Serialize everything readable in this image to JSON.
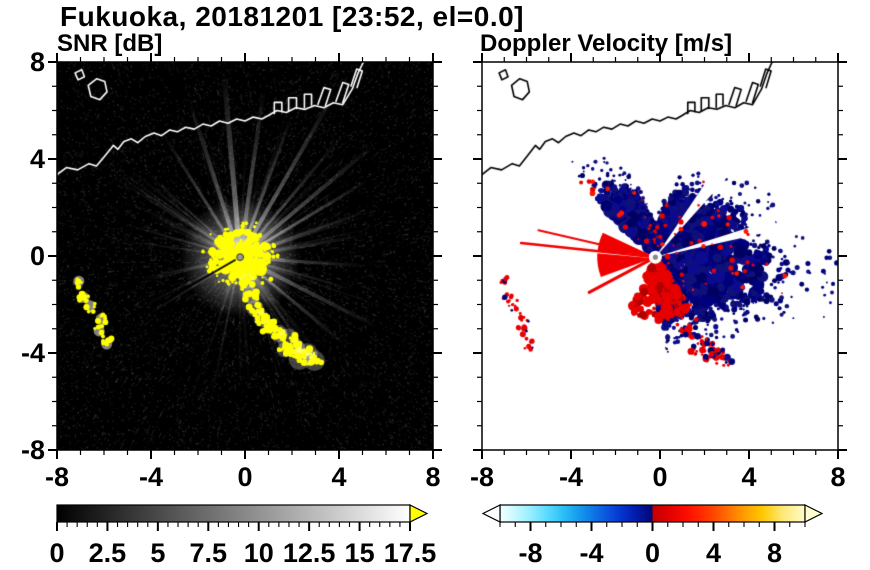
{
  "title": "Fukuoka, 20181201 [23:52, el=0.0]",
  "panels": {
    "snr": {
      "title": "SNR [dB]"
    },
    "doppler": {
      "title": "Doppler Velocity [m/s]"
    }
  },
  "chart_data": [
    {
      "type": "heatmap",
      "id": "snr",
      "title": "SNR [dB]",
      "xlim": [
        -8,
        8
      ],
      "ylim": [
        -8,
        8
      ],
      "x_major_ticks": [
        -8,
        -4,
        0,
        4,
        8
      ],
      "y_major_ticks": [
        -8,
        -4,
        0,
        4,
        8
      ],
      "minor_tick_step": 1,
      "grid": false,
      "colorbar": {
        "min": 0,
        "max": 17.5,
        "major_ticks": [
          0,
          2.5,
          5,
          7.5,
          10,
          12.5,
          15,
          17.5
        ],
        "minor_step": 0.5,
        "colormap_stops": [
          [
            0,
            "#000000"
          ],
          [
            0.5,
            "#808080"
          ],
          [
            1,
            "#ffffff"
          ]
        ],
        "over_arrow_color": "#ffff00"
      },
      "features": [
        "radar site at origin with saturated yellow SNR core",
        "bright white beams radiating from origin in many azimuths, densest toward north and northeast",
        "yellow clutter band trailing southeast from origin to about (3.5, -4.5)",
        "isolated yellow clutter patches near (-7, -1), (-6.7, -2.1), (-6.2, -3.1), (-5.9, -3.7)",
        "dark blocked ray toward the southwest",
        "white coastline across the north with harbor piers near (1.5, 5.5) to (4, 7.5)",
        "small island outline near (-6.5, 6.8)",
        "dim speckle noise over the whole black background"
      ]
    },
    {
      "type": "heatmap",
      "id": "doppler",
      "title": "Doppler Velocity [m/s]",
      "xlim": [
        -8,
        8
      ],
      "ylim": [
        -8,
        8
      ],
      "x_major_ticks": [
        -8,
        -4,
        0,
        4,
        8
      ],
      "y_major_ticks": [
        -8,
        -4,
        0,
        4,
        8
      ],
      "minor_tick_step": 1,
      "grid": false,
      "colorbar": {
        "min": -10,
        "max": 10,
        "major_ticks": [
          -8,
          -4,
          0,
          4,
          8
        ],
        "minor_step": 1,
        "colormap_stops": [
          [
            0,
            "#f0ffff"
          ],
          [
            0.05,
            "#c8f8ff"
          ],
          [
            0.1,
            "#96eeff"
          ],
          [
            0.15,
            "#5fdcff"
          ],
          [
            0.2,
            "#2fc4f7"
          ],
          [
            0.25,
            "#18a0f0"
          ],
          [
            0.3,
            "#0f7ae6"
          ],
          [
            0.35,
            "#0a55dd"
          ],
          [
            0.4,
            "#0533cc"
          ],
          [
            0.45,
            "#0218a8"
          ],
          [
            0.48,
            "#010f8a"
          ],
          [
            0.499,
            "#000a70"
          ],
          [
            0.501,
            "#c00000"
          ],
          [
            0.55,
            "#e00000"
          ],
          [
            0.62,
            "#ff1000"
          ],
          [
            0.7,
            "#ff4500"
          ],
          [
            0.78,
            "#ff8c00"
          ],
          [
            0.86,
            "#ffc800"
          ],
          [
            0.93,
            "#ffe97a"
          ],
          [
            1,
            "#fffbc8"
          ]
        ],
        "under_arrow_color": "#ffffff",
        "over_arrow_color": "#ffffd0"
      },
      "features": [
        "broad dark-blue (away from radar) velocity region covering northeast through southeast of the radar",
        "solid red (toward radar) wedge pointing west from the radar",
        "two long thin red spokes extending west from the radar",
        "red velocity cluster just south of the radar mixed with blue to the southeast",
        "red clutter patches near (-7, -1), (-6.7, -2.1), (-6.2, -3.1), (-5.9, -3.7)",
        "red and blue clutter chain near (1.5, -3) to (3.5, -4.5)",
        "black coastline across the north, same geometry as SNR panel",
        "white background elsewhere (no echo)"
      ]
    }
  ]
}
